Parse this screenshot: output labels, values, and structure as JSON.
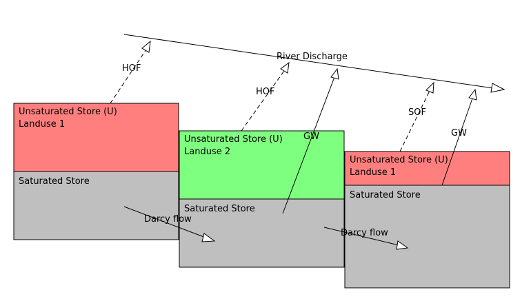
{
  "colors": {
    "unsaturated_red": "#ff7f7f",
    "unsaturated_green": "#7fff7f",
    "saturated_gray": "#bfbfbf",
    "stroke": "#000000"
  },
  "river": {
    "label": "River Discharge"
  },
  "columns": [
    {
      "unsaturated_title": "Unsaturated Store (U)",
      "landuse": "Landuse 1",
      "unsaturated_color": "#ff7f7f",
      "saturated_title": "Saturated Store"
    },
    {
      "unsaturated_title": "Unsaturated Store (U)",
      "landuse": "Landuse 2",
      "unsaturated_color": "#7fff7f",
      "saturated_title": "Saturated Store"
    },
    {
      "unsaturated_title": "Unsaturated Store (U)",
      "landuse": "Landuse 1",
      "unsaturated_color": "#ff7f7f",
      "saturated_title": "Saturated Store"
    }
  ],
  "flows": {
    "hof_1": "HOF",
    "hof_2": "HOF",
    "sof_3": "SOF",
    "gw_2": "GW",
    "gw_3": "GW",
    "darcy_1": "Darcy flow",
    "darcy_2": "Darcy flow"
  }
}
